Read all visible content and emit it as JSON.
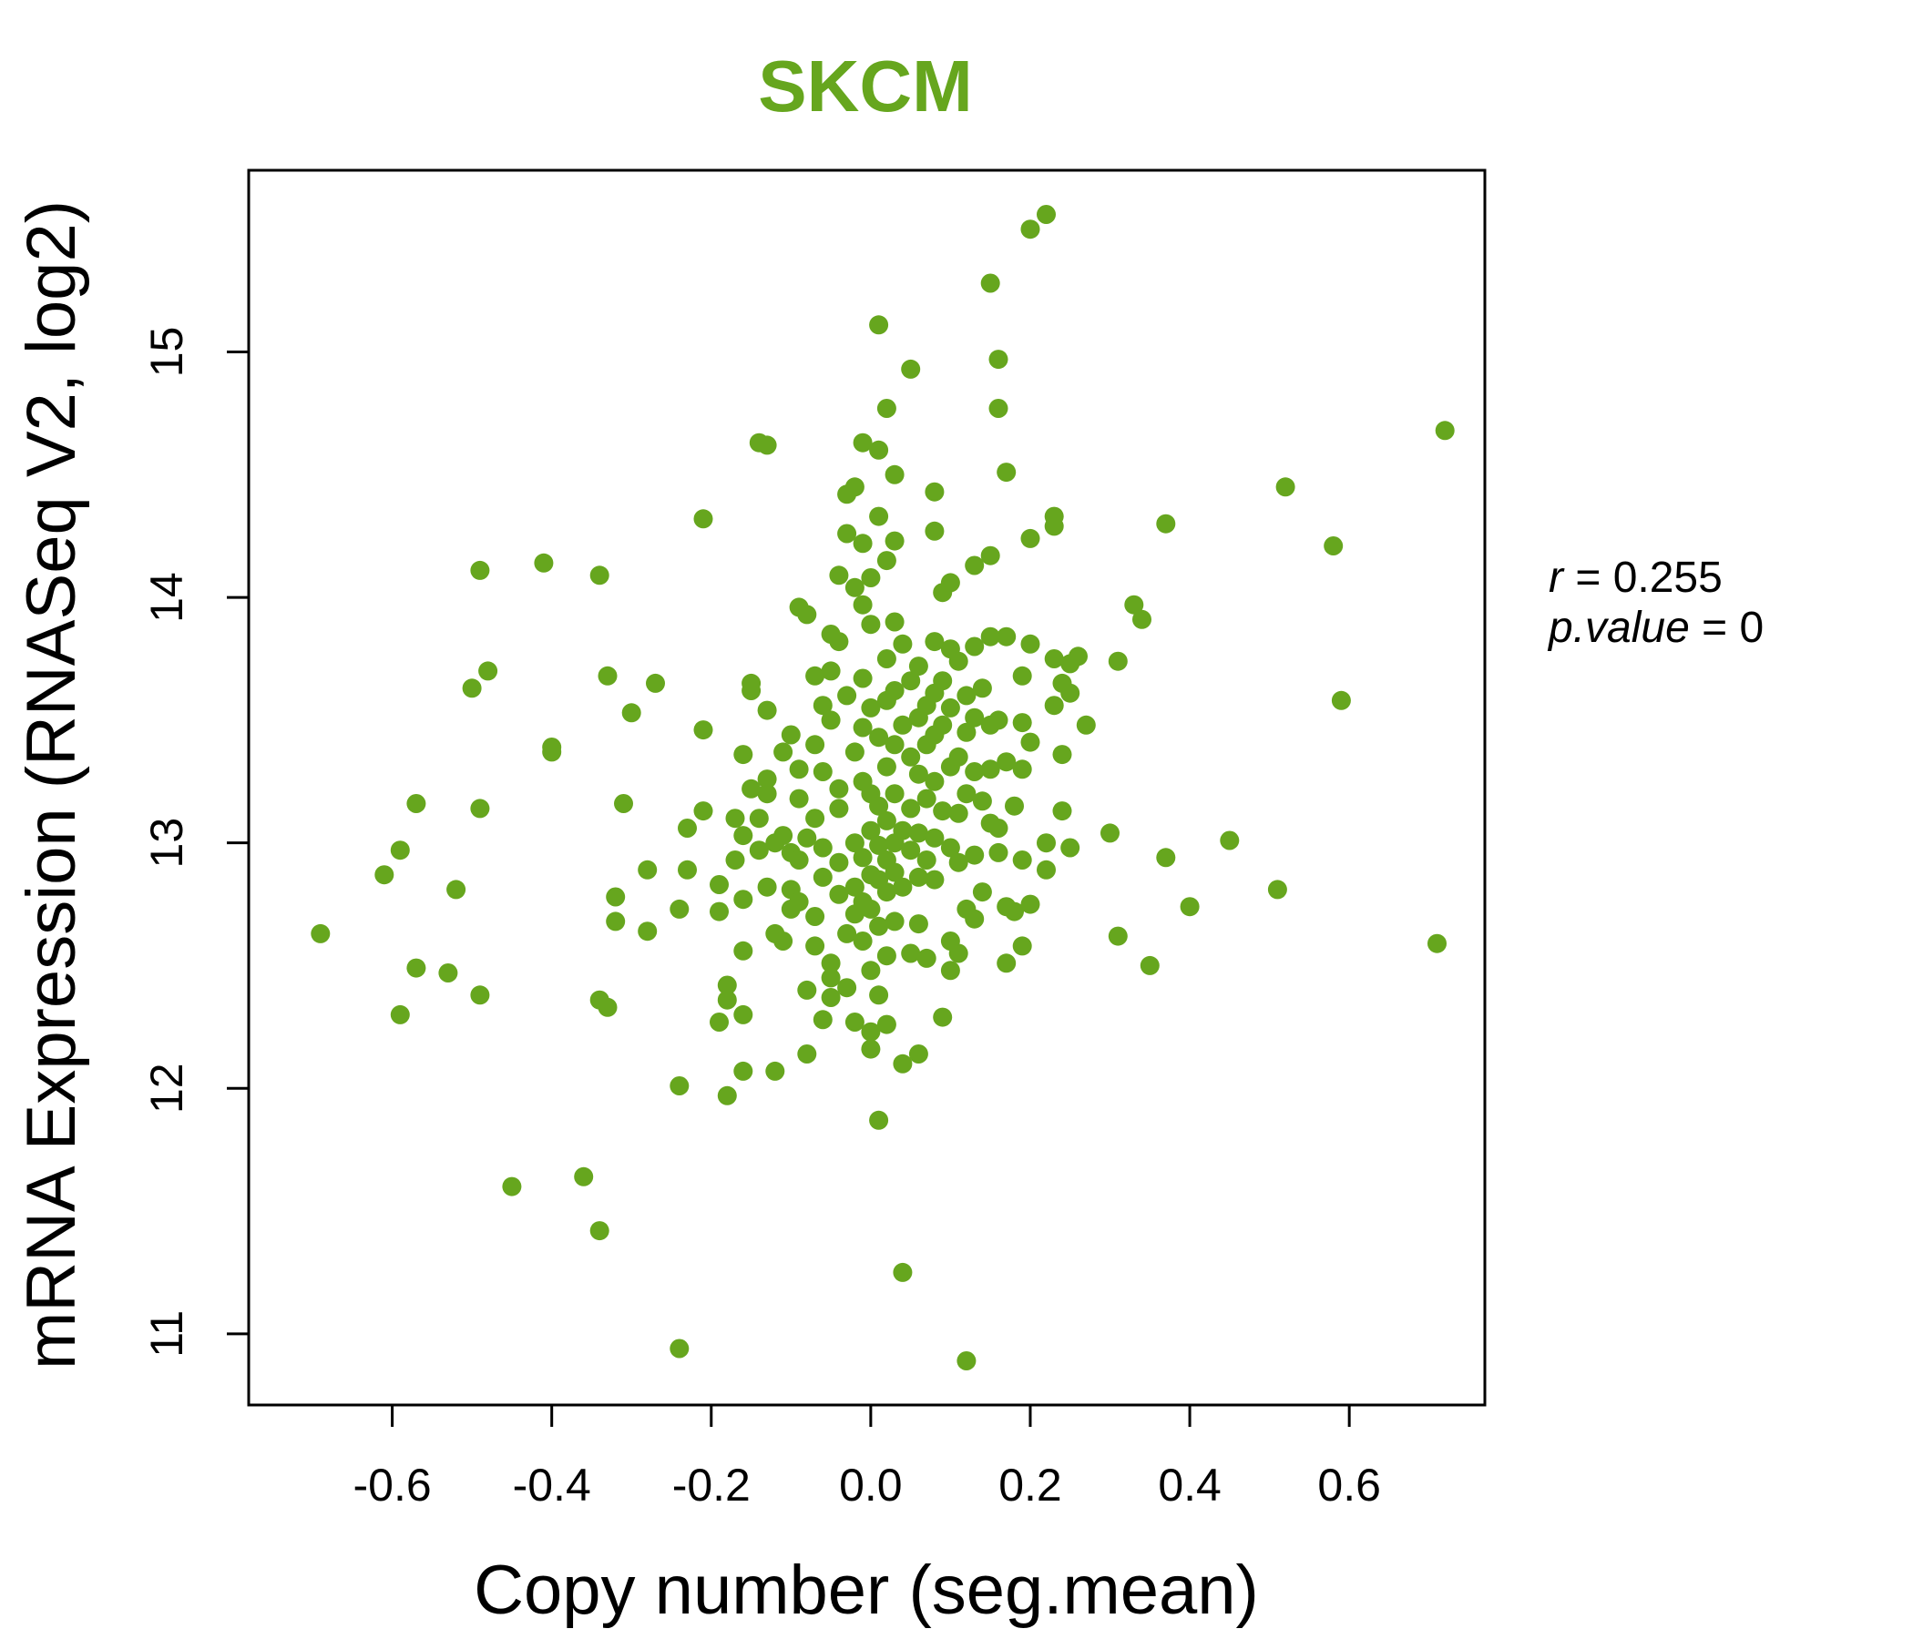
{
  "chart_data": {
    "type": "scatter",
    "title": "SKCM",
    "xlabel": "Copy number (seg.mean)",
    "ylabel": "mRNA Expression (RNASeq V2, log2)",
    "xlim": [
      -0.78,
      0.77
    ],
    "ylim": [
      10.71,
      15.74
    ],
    "x_ticks": [
      -0.6,
      -0.4,
      -0.2,
      0.0,
      0.2,
      0.4,
      0.6
    ],
    "x_tick_labels": [
      "-0.6",
      "-0.4",
      "-0.2",
      "0.0",
      "0.2",
      "0.4",
      "0.6"
    ],
    "y_ticks": [
      11,
      12,
      13,
      14,
      15
    ],
    "y_tick_labels": [
      "11",
      "12",
      "13",
      "14",
      "15"
    ],
    "grid": false,
    "legend": false,
    "color": "#66a61e",
    "annotations": [
      {
        "name": "r",
        "value": "0.255"
      },
      {
        "name": "p.value",
        "value": "0"
      }
    ],
    "points": [
      [
        -0.69,
        12.63
      ],
      [
        -0.61,
        12.87
      ],
      [
        -0.59,
        12.97
      ],
      [
        -0.59,
        12.3
      ],
      [
        -0.57,
        13.16
      ],
      [
        -0.57,
        12.49
      ],
      [
        -0.52,
        12.81
      ],
      [
        -0.53,
        12.47
      ],
      [
        -0.5,
        13.63
      ],
      [
        -0.49,
        13.14
      ],
      [
        -0.49,
        14.11
      ],
      [
        -0.48,
        13.7
      ],
      [
        -0.49,
        12.38
      ],
      [
        -0.45,
        11.6
      ],
      [
        -0.41,
        14.14
      ],
      [
        -0.4,
        13.37
      ],
      [
        -0.4,
        13.39
      ],
      [
        -0.36,
        11.64
      ],
      [
        -0.34,
        14.09
      ],
      [
        -0.33,
        13.68
      ],
      [
        -0.34,
        11.42
      ],
      [
        -0.34,
        12.36
      ],
      [
        -0.33,
        12.33
      ],
      [
        -0.32,
        12.78
      ],
      [
        -0.32,
        12.68
      ],
      [
        -0.31,
        13.16
      ],
      [
        -0.3,
        13.53
      ],
      [
        -0.28,
        12.64
      ],
      [
        -0.28,
        12.89
      ],
      [
        -0.27,
        13.65
      ],
      [
        -0.24,
        12.01
      ],
      [
        -0.24,
        10.94
      ],
      [
        -0.24,
        12.73
      ],
      [
        -0.23,
        13.06
      ],
      [
        -0.23,
        12.89
      ],
      [
        -0.21,
        14.32
      ],
      [
        -0.21,
        13.46
      ],
      [
        -0.21,
        13.13
      ],
      [
        -0.19,
        12.72
      ],
      [
        -0.19,
        12.83
      ],
      [
        -0.18,
        12.36
      ],
      [
        -0.18,
        12.42
      ],
      [
        -0.19,
        12.27
      ],
      [
        -0.18,
        11.97
      ],
      [
        -0.17,
        13.1
      ],
      [
        -0.17,
        12.93
      ],
      [
        -0.16,
        13.03
      ],
      [
        -0.16,
        12.77
      ],
      [
        -0.16,
        12.56
      ],
      [
        -0.16,
        12.3
      ],
      [
        -0.16,
        12.07
      ],
      [
        -0.16,
        13.36
      ],
      [
        -0.15,
        13.22
      ],
      [
        -0.15,
        13.65
      ],
      [
        -0.15,
        13.62
      ],
      [
        -0.14,
        13.1
      ],
      [
        -0.14,
        12.97
      ],
      [
        -0.14,
        14.63
      ],
      [
        -0.13,
        14.62
      ],
      [
        -0.13,
        13.26
      ],
      [
        -0.13,
        13.2
      ],
      [
        -0.13,
        13.54
      ],
      [
        -0.13,
        12.82
      ],
      [
        -0.12,
        13.0
      ],
      [
        -0.12,
        12.63
      ],
      [
        -0.12,
        12.07
      ],
      [
        -0.11,
        13.37
      ],
      [
        -0.11,
        13.03
      ],
      [
        -0.11,
        12.6
      ],
      [
        -0.1,
        12.96
      ],
      [
        -0.1,
        12.81
      ],
      [
        -0.1,
        12.73
      ],
      [
        -0.1,
        13.44
      ],
      [
        -0.09,
        13.96
      ],
      [
        -0.09,
        13.3
      ],
      [
        -0.09,
        13.18
      ],
      [
        -0.09,
        12.93
      ],
      [
        -0.09,
        12.76
      ],
      [
        -0.08,
        13.93
      ],
      [
        -0.08,
        12.4
      ],
      [
        -0.08,
        12.14
      ],
      [
        -0.08,
        13.02
      ],
      [
        -0.07,
        13.68
      ],
      [
        -0.07,
        13.4
      ],
      [
        -0.07,
        13.1
      ],
      [
        -0.07,
        12.7
      ],
      [
        -0.07,
        12.58
      ],
      [
        -0.06,
        13.56
      ],
      [
        -0.06,
        13.29
      ],
      [
        -0.06,
        12.98
      ],
      [
        -0.06,
        12.86
      ],
      [
        -0.06,
        12.28
      ],
      [
        -0.05,
        13.85
      ],
      [
        -0.05,
        13.7
      ],
      [
        -0.05,
        13.5
      ],
      [
        -0.05,
        12.51
      ],
      [
        -0.05,
        12.45
      ],
      [
        -0.05,
        12.37
      ],
      [
        -0.04,
        13.82
      ],
      [
        -0.04,
        13.22
      ],
      [
        -0.04,
        13.14
      ],
      [
        -0.04,
        12.92
      ],
      [
        -0.04,
        12.79
      ],
      [
        -0.04,
        14.09
      ],
      [
        -0.03,
        14.42
      ],
      [
        -0.03,
        14.26
      ],
      [
        -0.03,
        13.6
      ],
      [
        -0.03,
        12.63
      ],
      [
        -0.03,
        12.41
      ],
      [
        -0.02,
        14.45
      ],
      [
        -0.02,
        14.04
      ],
      [
        -0.02,
        13.37
      ],
      [
        -0.02,
        13.0
      ],
      [
        -0.02,
        12.82
      ],
      [
        -0.02,
        12.71
      ],
      [
        -0.02,
        12.27
      ],
      [
        -0.01,
        14.63
      ],
      [
        -0.01,
        13.97
      ],
      [
        -0.01,
        13.67
      ],
      [
        -0.01,
        13.47
      ],
      [
        -0.01,
        13.25
      ],
      [
        -0.01,
        12.94
      ],
      [
        -0.01,
        12.76
      ],
      [
        -0.01,
        12.6
      ],
      [
        -0.01,
        14.22
      ],
      [
        0.0,
        14.08
      ],
      [
        0.0,
        13.89
      ],
      [
        0.0,
        13.55
      ],
      [
        0.0,
        13.2
      ],
      [
        0.0,
        13.05
      ],
      [
        0.0,
        12.87
      ],
      [
        0.0,
        12.73
      ],
      [
        0.0,
        12.48
      ],
      [
        0.0,
        12.16
      ],
      [
        0.0,
        12.23
      ],
      [
        0.01,
        14.6
      ],
      [
        0.01,
        14.33
      ],
      [
        0.01,
        13.43
      ],
      [
        0.01,
        13.15
      ],
      [
        0.01,
        12.99
      ],
      [
        0.01,
        12.85
      ],
      [
        0.01,
        12.66
      ],
      [
        0.01,
        12.38
      ],
      [
        0.01,
        11.87
      ],
      [
        0.01,
        15.11
      ],
      [
        0.02,
        14.77
      ],
      [
        0.02,
        14.15
      ],
      [
        0.02,
        13.75
      ],
      [
        0.02,
        13.58
      ],
      [
        0.02,
        13.31
      ],
      [
        0.02,
        13.09
      ],
      [
        0.02,
        12.93
      ],
      [
        0.02,
        12.8
      ],
      [
        0.02,
        12.54
      ],
      [
        0.02,
        12.26
      ],
      [
        0.03,
        14.5
      ],
      [
        0.03,
        14.23
      ],
      [
        0.03,
        13.9
      ],
      [
        0.03,
        13.62
      ],
      [
        0.03,
        13.4
      ],
      [
        0.03,
        13.2
      ],
      [
        0.03,
        13.0
      ],
      [
        0.03,
        12.88
      ],
      [
        0.03,
        12.68
      ],
      [
        0.04,
        11.25
      ],
      [
        0.04,
        13.81
      ],
      [
        0.04,
        13.48
      ],
      [
        0.04,
        13.05
      ],
      [
        0.04,
        12.82
      ],
      [
        0.04,
        12.1
      ],
      [
        0.05,
        14.93
      ],
      [
        0.05,
        13.66
      ],
      [
        0.05,
        13.35
      ],
      [
        0.05,
        13.14
      ],
      [
        0.05,
        12.97
      ],
      [
        0.05,
        12.55
      ],
      [
        0.06,
        13.72
      ],
      [
        0.06,
        13.51
      ],
      [
        0.06,
        13.28
      ],
      [
        0.06,
        13.04
      ],
      [
        0.06,
        12.86
      ],
      [
        0.06,
        12.67
      ],
      [
        0.06,
        12.14
      ],
      [
        0.07,
        13.56
      ],
      [
        0.07,
        13.4
      ],
      [
        0.07,
        13.18
      ],
      [
        0.07,
        12.93
      ],
      [
        0.07,
        12.53
      ],
      [
        0.08,
        14.43
      ],
      [
        0.08,
        14.27
      ],
      [
        0.08,
        13.82
      ],
      [
        0.08,
        13.61
      ],
      [
        0.08,
        13.44
      ],
      [
        0.08,
        13.25
      ],
      [
        0.08,
        13.02
      ],
      [
        0.08,
        12.85
      ],
      [
        0.09,
        14.02
      ],
      [
        0.09,
        13.66
      ],
      [
        0.09,
        13.48
      ],
      [
        0.09,
        13.13
      ],
      [
        0.09,
        12.29
      ],
      [
        0.1,
        14.06
      ],
      [
        0.1,
        13.79
      ],
      [
        0.1,
        13.55
      ],
      [
        0.1,
        13.31
      ],
      [
        0.1,
        12.98
      ],
      [
        0.1,
        12.6
      ],
      [
        0.1,
        12.48
      ],
      [
        0.11,
        13.74
      ],
      [
        0.11,
        13.35
      ],
      [
        0.11,
        13.12
      ],
      [
        0.11,
        12.92
      ],
      [
        0.11,
        12.55
      ],
      [
        0.12,
        13.6
      ],
      [
        0.12,
        13.45
      ],
      [
        0.12,
        13.2
      ],
      [
        0.12,
        12.73
      ],
      [
        0.12,
        10.89
      ],
      [
        0.13,
        13.8
      ],
      [
        0.13,
        13.51
      ],
      [
        0.13,
        13.29
      ],
      [
        0.13,
        12.95
      ],
      [
        0.13,
        12.69
      ],
      [
        0.13,
        14.13
      ],
      [
        0.14,
        13.63
      ],
      [
        0.14,
        13.17
      ],
      [
        0.14,
        12.8
      ],
      [
        0.15,
        15.28
      ],
      [
        0.15,
        14.17
      ],
      [
        0.15,
        13.84
      ],
      [
        0.15,
        13.48
      ],
      [
        0.15,
        13.3
      ],
      [
        0.15,
        13.08
      ],
      [
        0.16,
        14.77
      ],
      [
        0.16,
        14.97
      ],
      [
        0.16,
        13.5
      ],
      [
        0.16,
        13.06
      ],
      [
        0.16,
        12.96
      ],
      [
        0.17,
        14.51
      ],
      [
        0.17,
        13.84
      ],
      [
        0.17,
        13.33
      ],
      [
        0.17,
        12.74
      ],
      [
        0.17,
        12.51
      ],
      [
        0.18,
        13.15
      ],
      [
        0.18,
        12.72
      ],
      [
        0.19,
        13.49
      ],
      [
        0.19,
        13.68
      ],
      [
        0.19,
        13.3
      ],
      [
        0.19,
        12.93
      ],
      [
        0.19,
        12.58
      ],
      [
        0.2,
        15.5
      ],
      [
        0.2,
        14.24
      ],
      [
        0.2,
        13.81
      ],
      [
        0.2,
        13.41
      ],
      [
        0.2,
        12.75
      ],
      [
        0.22,
        15.56
      ],
      [
        0.22,
        13.0
      ],
      [
        0.22,
        12.89
      ],
      [
        0.23,
        14.33
      ],
      [
        0.23,
        14.29
      ],
      [
        0.23,
        13.75
      ],
      [
        0.23,
        13.56
      ],
      [
        0.24,
        13.65
      ],
      [
        0.24,
        13.13
      ],
      [
        0.24,
        13.36
      ],
      [
        0.25,
        13.61
      ],
      [
        0.25,
        13.73
      ],
      [
        0.25,
        12.98
      ],
      [
        0.26,
        13.76
      ],
      [
        0.27,
        13.48
      ],
      [
        0.3,
        13.04
      ],
      [
        0.31,
        13.74
      ],
      [
        0.31,
        12.62
      ],
      [
        0.33,
        13.97
      ],
      [
        0.34,
        13.91
      ],
      [
        0.35,
        12.5
      ],
      [
        0.37,
        14.3
      ],
      [
        0.37,
        12.94
      ],
      [
        0.4,
        12.74
      ],
      [
        0.45,
        13.01
      ],
      [
        0.51,
        12.81
      ],
      [
        0.52,
        14.45
      ],
      [
        0.58,
        14.21
      ],
      [
        0.59,
        13.58
      ],
      [
        0.71,
        12.59
      ],
      [
        0.72,
        14.68
      ]
    ]
  }
}
